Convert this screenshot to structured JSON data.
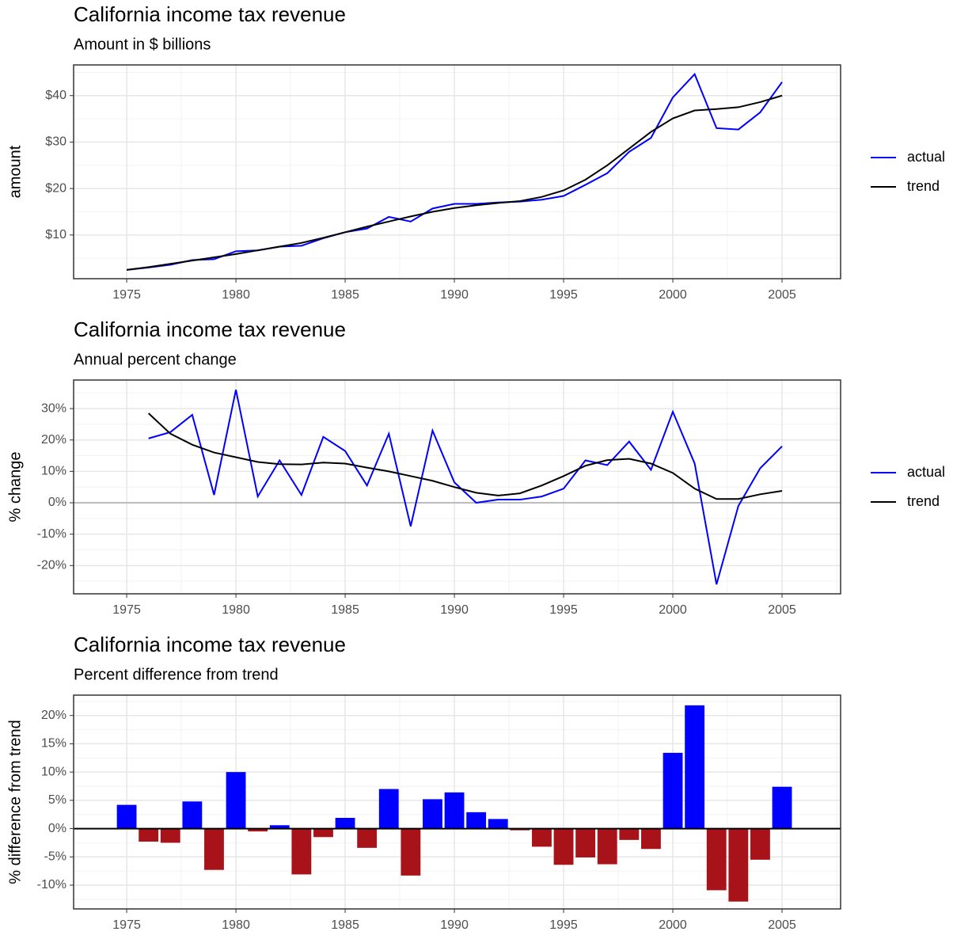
{
  "chart_data": [
    {
      "type": "line",
      "title": "California income tax revenue",
      "subtitle": "Amount in $ billions",
      "ylabel": "amount",
      "x": [
        1975,
        1976,
        1977,
        1978,
        1979,
        1980,
        1981,
        1982,
        1983,
        1984,
        1985,
        1986,
        1987,
        1988,
        1989,
        1990,
        1991,
        1992,
        1993,
        1994,
        1995,
        1996,
        1997,
        1998,
        1999,
        2000,
        2001,
        2002,
        2003,
        2004,
        2005
      ],
      "series": [
        {
          "name": "actual",
          "color": "#0000ff",
          "values": [
            2.5,
            3.0,
            3.6,
            4.6,
            4.8,
            6.5,
            6.7,
            7.5,
            7.7,
            9.3,
            10.6,
            11.4,
            13.9,
            12.9,
            15.7,
            16.7,
            16.7,
            17.0,
            17.2,
            17.6,
            18.4,
            20.8,
            23.3,
            27.9,
            30.9,
            39.6,
            44.6,
            33.0,
            32.7,
            36.4,
            42.9
          ]
        },
        {
          "name": "trend",
          "color": "#000000",
          "values": [
            2.5,
            3.1,
            3.8,
            4.5,
            5.2,
            5.9,
            6.7,
            7.5,
            8.3,
            9.4,
            10.6,
            11.8,
            12.9,
            14.0,
            15.0,
            15.8,
            16.4,
            16.9,
            17.3,
            18.2,
            19.6,
            21.9,
            25.0,
            28.6,
            32.2,
            35.1,
            36.8,
            37.1,
            37.5,
            38.6,
            40.0
          ]
        }
      ],
      "xlim": [
        1972.57,
        2007.68
      ],
      "xticks": [
        1975,
        1980,
        1985,
        1990,
        1995,
        2000,
        2005
      ],
      "ylim": [
        0.6,
        46.6
      ],
      "yticks": [
        {
          "value": 10,
          "label": "$10"
        },
        {
          "value": 20,
          "label": "$20"
        },
        {
          "value": 30,
          "label": "$30"
        },
        {
          "value": 40,
          "label": "$40"
        }
      ],
      "grid": true,
      "legend": "right"
    },
    {
      "type": "line",
      "title": "California income tax revenue",
      "subtitle": "Annual percent change",
      "ylabel": "% change",
      "x": [
        1976,
        1977,
        1978,
        1979,
        1980,
        1981,
        1982,
        1983,
        1984,
        1985,
        1986,
        1987,
        1988,
        1989,
        1990,
        1991,
        1992,
        1993,
        1994,
        1995,
        1996,
        1997,
        1998,
        1999,
        2000,
        2001,
        2002,
        2003,
        2004,
        2005
      ],
      "series": [
        {
          "name": "actual",
          "color": "#0000ff",
          "values": [
            20.5,
            22.5,
            28,
            2.5,
            36,
            2,
            13.5,
            2.5,
            21,
            16.5,
            5.5,
            22,
            -7.5,
            23,
            6.5,
            0,
            1,
            1,
            2,
            4.5,
            13.5,
            12,
            19.5,
            10.5,
            29,
            12.5,
            -26,
            -1,
            11,
            18
          ]
        },
        {
          "name": "trend",
          "color": "#000000",
          "values": [
            28.5,
            22,
            18.5,
            16,
            14.5,
            13,
            12.3,
            12.2,
            12.8,
            12.5,
            11.2,
            10,
            8.5,
            7,
            5,
            3.2,
            2.3,
            3,
            5.5,
            8.5,
            11.8,
            13.6,
            14,
            12.5,
            9.5,
            4.5,
            1.2,
            1.2,
            2.7,
            3.8
          ]
        }
      ],
      "xlim": [
        1972.57,
        2007.68
      ],
      "xticks": [
        1975,
        1980,
        1985,
        1990,
        1995,
        2000,
        2005
      ],
      "ylim": [
        -29,
        39.1
      ],
      "yticks": [
        {
          "value": -20,
          "label": "-20%"
        },
        {
          "value": -10,
          "label": "-10%"
        },
        {
          "value": 0,
          "label": "0%"
        },
        {
          "value": 10,
          "label": "10%"
        },
        {
          "value": 20,
          "label": "20%"
        },
        {
          "value": 30,
          "label": "30%"
        }
      ],
      "grid": true,
      "legend": "right",
      "zero_line": true
    },
    {
      "type": "bar",
      "title": "California income tax revenue",
      "subtitle": "Percent difference from trend",
      "ylabel": "% difference from trend",
      "x": [
        1975,
        1976,
        1977,
        1978,
        1979,
        1980,
        1981,
        1982,
        1983,
        1984,
        1985,
        1986,
        1987,
        1988,
        1989,
        1990,
        1991,
        1992,
        1993,
        1994,
        1995,
        1996,
        1997,
        1998,
        1999,
        2000,
        2001,
        2002,
        2003,
        2004,
        2005
      ],
      "values": [
        4.2,
        -2.3,
        -2.5,
        4.8,
        -7.3,
        10,
        -0.5,
        0.6,
        -8.1,
        -1.5,
        1.9,
        -3.4,
        7,
        -8.3,
        5.2,
        6.4,
        2.9,
        1.7,
        -0.3,
        -3.2,
        -6.4,
        -5.1,
        -6.3,
        -2,
        -3.6,
        13.4,
        21.8,
        -10.9,
        -12.9,
        -5.5,
        7.4
      ],
      "positive_color": "#0000ff",
      "negative_color": "#a8131a",
      "xlim": [
        1972.57,
        2007.68
      ],
      "xticks": [
        1975,
        1980,
        1985,
        1990,
        1995,
        2000,
        2005
      ],
      "ylim": [
        -14.2,
        23.6
      ],
      "yticks": [
        {
          "value": -10,
          "label": "-10%"
        },
        {
          "value": -5,
          "label": "-5%"
        },
        {
          "value": 0,
          "label": "0%"
        },
        {
          "value": 5,
          "label": "5%"
        },
        {
          "value": 10,
          "label": "10%"
        },
        {
          "value": 15,
          "label": "15%"
        },
        {
          "value": 20,
          "label": "20%"
        }
      ],
      "grid": true,
      "zero_line": true
    }
  ]
}
